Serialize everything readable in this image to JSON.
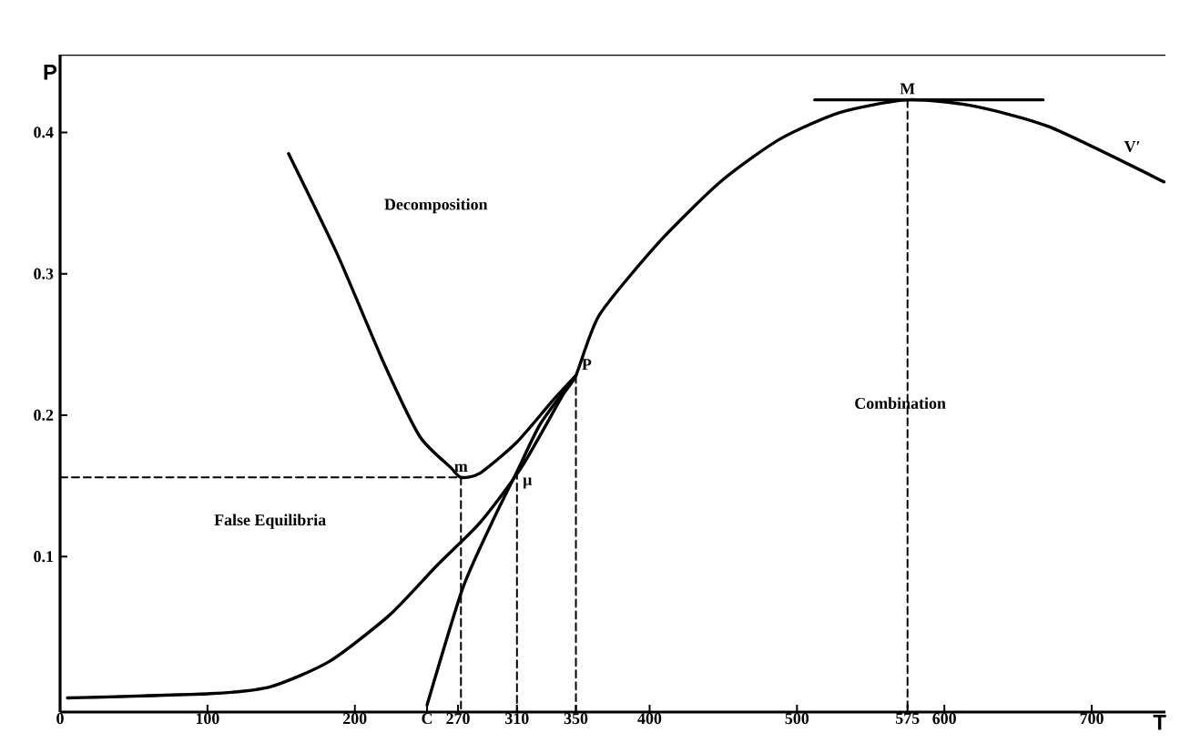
{
  "chart_data": {
    "type": "line",
    "xlabel": "T",
    "ylabel": "P",
    "xlim": [
      0,
      750
    ],
    "ylim": [
      -0.01,
      0.455
    ],
    "xticks": [
      0,
      100,
      200,
      {
        "value": 249,
        "label": "C"
      },
      270,
      310,
      350,
      400,
      500,
      575,
      600,
      700
    ],
    "yticks": [
      0.1,
      0.2,
      0.3,
      0.4
    ],
    "grid": false,
    "marker": "none",
    "series": [
      {
        "color": "#000000",
        "line_style": "solid",
        "x": [
          5,
          102,
          143,
          183,
          224,
          256,
          285,
          313,
          341,
          350,
          366,
          407,
          448,
          488,
          529,
          575,
          618,
          671,
          749
        ],
        "values": [
          0.0,
          0.003,
          0.008,
          0.026,
          0.059,
          0.094,
          0.124,
          0.163,
          0.214,
          0.228,
          0.271,
          0.323,
          0.365,
          0.395,
          0.414,
          0.423,
          0.419,
          0.404,
          0.365
        ]
      },
      {
        "color": "#000000",
        "line_style": "solid",
        "x": [
          155,
          188,
          220,
          244,
          265,
          272,
          285,
          310,
          334,
          350
        ],
        "values": [
          0.385,
          0.314,
          0.236,
          0.185,
          0.163,
          0.156,
          0.159,
          0.181,
          0.21,
          0.228
        ]
      },
      {
        "color": "#000000",
        "line_style": "solid",
        "x": [
          249,
          273,
          293,
          310,
          326,
          350
        ],
        "values": [
          -0.005,
          0.077,
          0.124,
          0.16,
          0.194,
          0.228
        ]
      },
      {
        "color": "#000000",
        "line_style": "solid",
        "x": [
          512,
          667
        ],
        "values": [
          0.423,
          0.423
        ]
      },
      {
        "color": "#000000",
        "line_style": "dashed",
        "x": [
          0,
          272,
          272
        ],
        "values": [
          0.156,
          0.156,
          -0.01
        ]
      },
      {
        "color": "#000000",
        "line_style": "dashed",
        "x": [
          310,
          310
        ],
        "values": [
          0.16,
          -0.01
        ]
      },
      {
        "color": "#000000",
        "line_style": "dashed",
        "x": [
          350,
          350
        ],
        "values": [
          0.228,
          -0.01
        ]
      },
      {
        "color": "#000000",
        "line_style": "dashed",
        "x": [
          575,
          575
        ],
        "values": [
          0.423,
          -0.01
        ]
      }
    ],
    "annotations": [
      "Decomposition",
      "Combination",
      "False Equilibria",
      {
        "text": "m",
        "x": 272,
        "y": 0.156
      },
      {
        "text": "μ",
        "x": 310,
        "y": 0.16
      },
      {
        "text": "P",
        "x": 350,
        "y": 0.228
      },
      {
        "text": "M",
        "x": 575,
        "y": 0.423
      },
      "V′"
    ]
  }
}
